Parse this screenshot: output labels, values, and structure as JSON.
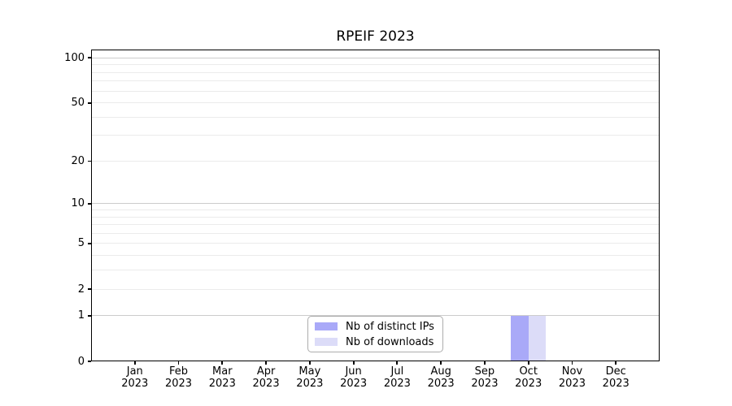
{
  "title": "RPEIF 2023",
  "chart_data": {
    "type": "bar",
    "title": "RPEIF 2023",
    "x_months": [
      "Jan",
      "Feb",
      "Mar",
      "Apr",
      "May",
      "Jun",
      "Jul",
      "Aug",
      "Sep",
      "Oct",
      "Nov",
      "Dec"
    ],
    "x_year": "2023",
    "series": [
      {
        "name": "Nb of distinct IPs",
        "color": "#a9a9f8",
        "values": [
          0,
          0,
          0,
          0,
          0,
          0,
          0,
          0,
          0,
          1,
          0,
          0
        ]
      },
      {
        "name": "Nb of downloads",
        "color": "#dcdcf8",
        "values": [
          0,
          0,
          0,
          0,
          0,
          0,
          0,
          0,
          0,
          1,
          0,
          0
        ]
      }
    ],
    "y_axis": {
      "scale": "log10(1+v)",
      "ticks": [
        0,
        1,
        2,
        5,
        10,
        20,
        50,
        100
      ],
      "max": 113.8,
      "major_gridlines": [
        1,
        10,
        100
      ],
      "minor_gridlines": [
        2,
        3,
        4,
        5,
        6,
        7,
        8,
        9,
        20,
        30,
        40,
        50,
        60,
        70,
        80,
        90
      ]
    },
    "legend": {
      "position": "bottom-center"
    },
    "colors": {
      "major_grid": "#cccccc",
      "minor_grid": "#ebebeb",
      "spine": "#000000",
      "text": "#000000",
      "background": "#ffffff"
    }
  }
}
